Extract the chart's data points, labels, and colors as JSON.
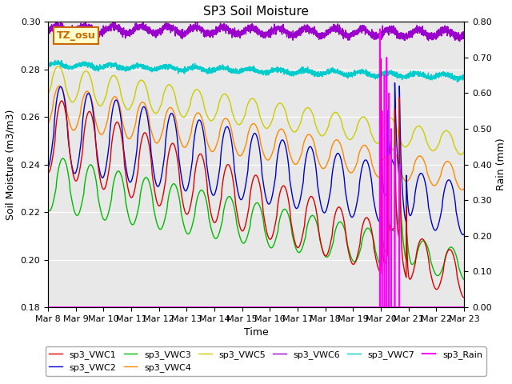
{
  "title": "SP3 Soil Moisture",
  "ylabel_left": "Soil Moisture (m3/m3)",
  "ylabel_right": "Rain (mm)",
  "xlabel": "Time",
  "ylim_left": [
    0.18,
    0.3
  ],
  "ylim_right": [
    0.0,
    0.8
  ],
  "series_colors": {
    "sp3_VWC1": "#dd0000",
    "sp3_VWC2": "#0000cc",
    "sp3_VWC3": "#00bb00",
    "sp3_VWC4": "#ff8800",
    "sp3_VWC5": "#cccc00",
    "sp3_VWC6": "#9900cc",
    "sp3_VWC7": "#00cccc",
    "sp3_Rain": "#ff00ff"
  },
  "tz_label": "TZ_osu",
  "tz_label_color": "#cc6600",
  "tz_label_bg": "#ffffcc",
  "background_color": "#e8e8e8",
  "fig_bg": "#ffffff",
  "tick_label_size": 8,
  "axis_label_size": 9,
  "title_size": 11,
  "lw": 1.0
}
